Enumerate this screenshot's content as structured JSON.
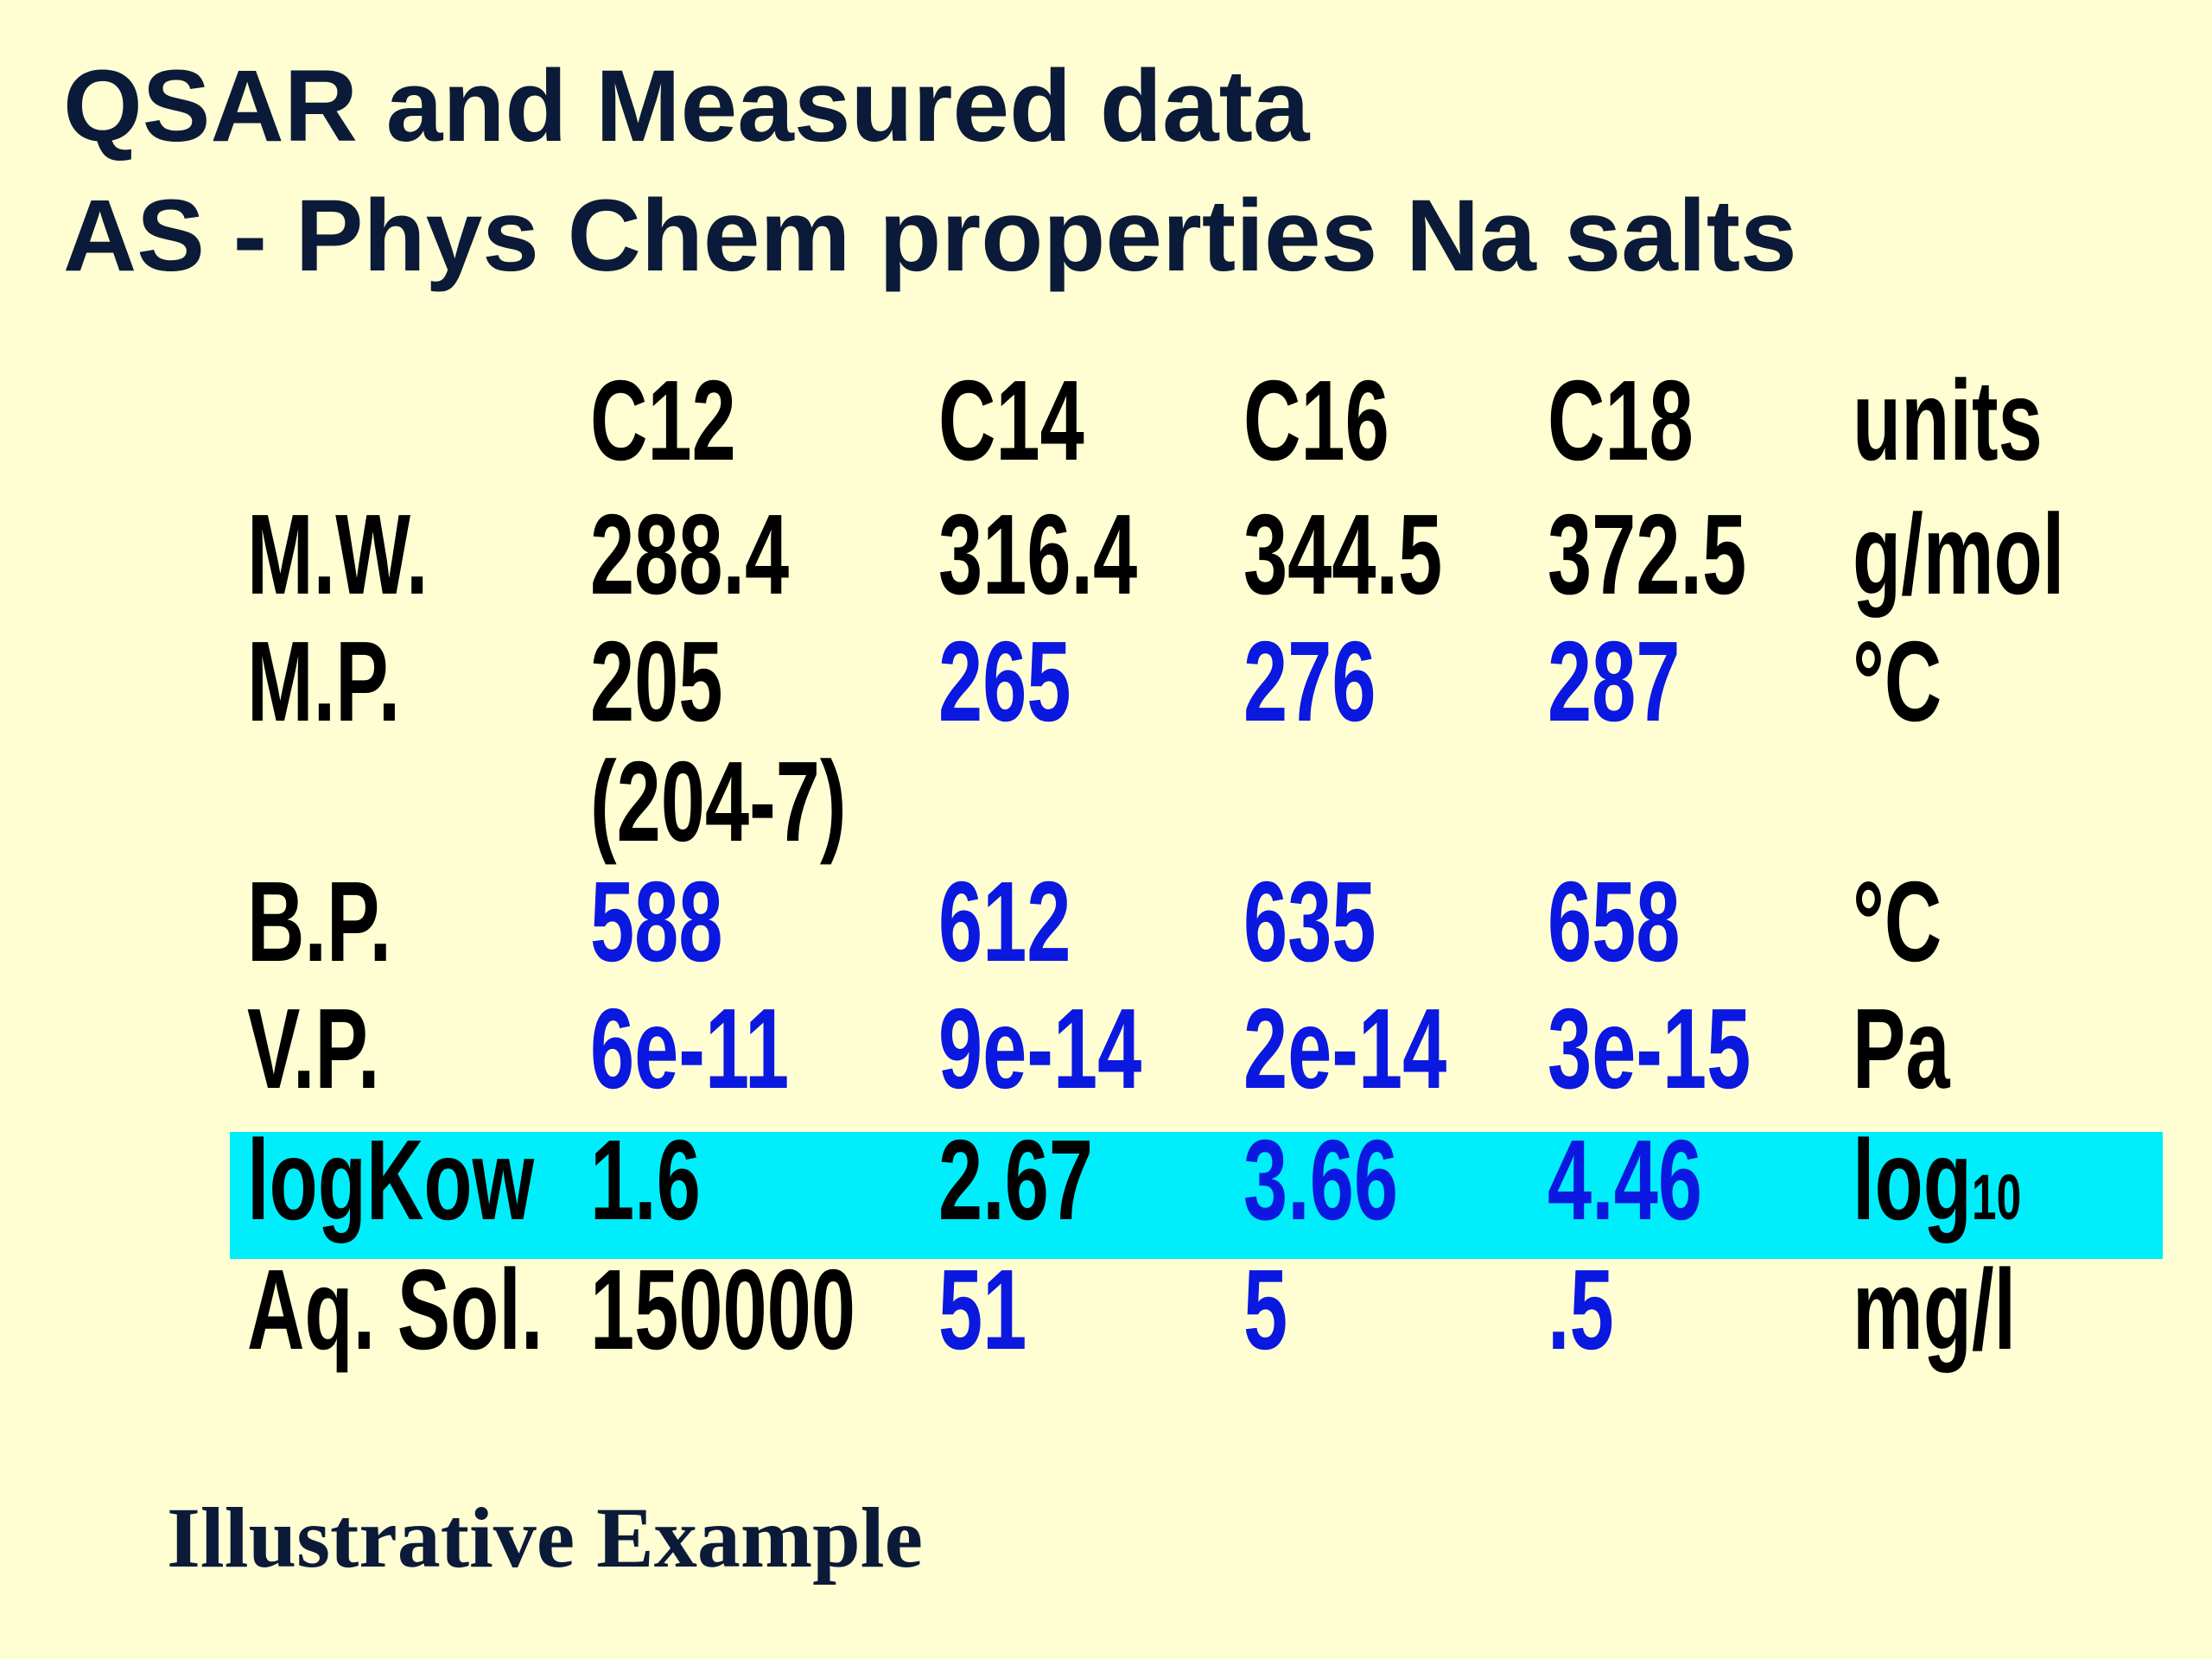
{
  "header": {
    "title_line1": "QSAR and Measured data",
    "title_line2": "AS - Phys Chem properties Na salts"
  },
  "table": {
    "columns": [
      "C12",
      "C14",
      "C16",
      "C18",
      "units"
    ],
    "rows": [
      {
        "label": "M.W.",
        "cells": [
          "288.4",
          "316.4",
          "344.5",
          "372.5"
        ],
        "unit": "g/mol"
      },
      {
        "label": "M.P.",
        "cells": [
          "205",
          "265",
          "276",
          "287"
        ],
        "note": "(204-7)",
        "unit": "°C"
      },
      {
        "label": "B.P.",
        "cells": [
          "588",
          "612",
          "635",
          "658"
        ],
        "unit": "°C"
      },
      {
        "label": "V.P.",
        "cells": [
          "6e-11",
          "9e-14",
          "2e-14",
          "3e-15"
        ],
        "unit": "Pa"
      },
      {
        "label": "logKow",
        "cells": [
          "1.6",
          "2.67",
          "3.66",
          "4.46"
        ],
        "unit": {
          "text": "log",
          "sub": "10"
        }
      },
      {
        "label": "Aq. Sol.",
        "cells": [
          "150000",
          "51",
          "5",
          ".5"
        ],
        "unit": "mg/l"
      }
    ]
  },
  "footer": {
    "caption": "Illustrative Example"
  }
}
